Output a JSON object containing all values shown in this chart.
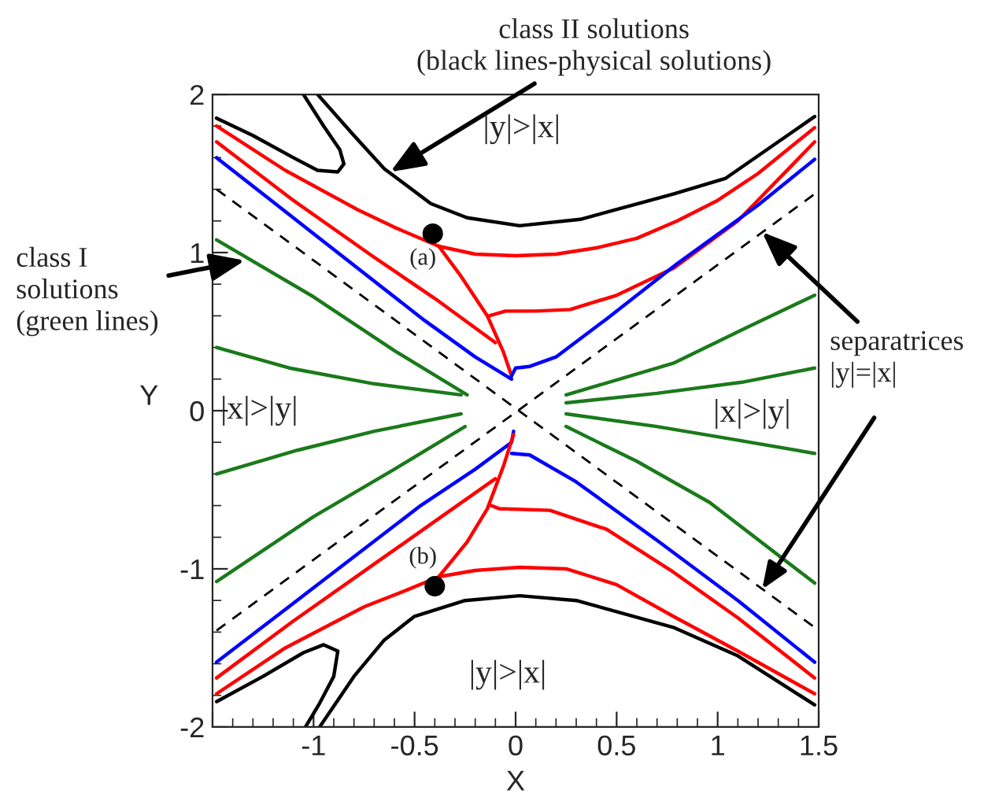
{
  "chart_data": {
    "type": "line",
    "xlabel": "X",
    "ylabel": "Y",
    "xlim": [
      -1.5,
      1.5
    ],
    "ylim": [
      -2,
      2
    ],
    "xticks": [
      {
        "value": -1.5,
        "label": null
      },
      -1,
      -0.5,
      0,
      0.5,
      1,
      1.5
    ],
    "yticks": [
      -2,
      -1,
      0,
      1,
      2
    ],
    "grid": false,
    "legend": false,
    "marker": "none",
    "series": [
      {
        "color": "#000000",
        "x": [
          -1.48,
          -1.3,
          -1.1,
          -0.98,
          -0.88,
          -0.85,
          -0.87,
          -0.95,
          -1.05
        ],
        "values": [
          1.85,
          1.74,
          1.6,
          1.52,
          1.51,
          1.56,
          1.65,
          1.8,
          2.0
        ]
      },
      {
        "color": "#000000",
        "x": [
          -0.98,
          -0.8,
          -0.65,
          -0.42,
          -0.24,
          0.02,
          0.32,
          0.78,
          1.04,
          1.48
        ],
        "values": [
          2.0,
          1.74,
          1.53,
          1.31,
          1.22,
          1.17,
          1.21,
          1.37,
          1.47,
          1.86
        ]
      },
      {
        "color": "#ff0000",
        "x": [
          -1.48,
          -1.14,
          -0.78,
          -0.6,
          -0.38,
          -0.2,
          0,
          0.2,
          0.4,
          0.6,
          0.8,
          1.0,
          1.2,
          1.48
        ],
        "values": [
          1.8,
          1.52,
          1.27,
          1.16,
          1.04,
          0.99,
          0.98,
          0.99,
          1.03,
          1.09,
          1.2,
          1.33,
          1.5,
          1.79
        ]
      },
      {
        "color": "#ff0000",
        "x": [
          -0.38,
          -0.27,
          -0.14,
          -0.06,
          -0.02
        ],
        "values": [
          1.04,
          0.85,
          0.6,
          0.37,
          0.22
        ]
      },
      {
        "color": "#ff0000",
        "x": [
          -1.48,
          -1.1,
          -0.7,
          -0.4,
          -0.1
        ],
        "values": [
          1.7,
          1.33,
          0.97,
          0.71,
          0.43
        ]
      },
      {
        "color": "#ff0000",
        "x": [
          -0.13,
          -0.05,
          0.1,
          0.27,
          0.5,
          0.78,
          1.1,
          1.48
        ],
        "values": [
          0.6,
          0.63,
          0.63,
          0.64,
          0.73,
          0.9,
          1.2,
          1.7
        ]
      },
      {
        "color": "#0000ff",
        "x": [
          -1.48,
          -1.0,
          -0.45,
          -0.2,
          -0.02
        ],
        "values": [
          1.6,
          1.12,
          0.57,
          0.34,
          0.2
        ]
      },
      {
        "color": "#0000ff",
        "x": [
          -0.02,
          0.0,
          0.07,
          0.2,
          0.45,
          0.8,
          1.2,
          1.48
        ],
        "values": [
          0.22,
          0.27,
          0.28,
          0.34,
          0.58,
          0.93,
          1.3,
          1.59
        ]
      },
      {
        "color": "#000000",
        "line_style": "dashed",
        "x": [
          -1.48,
          1.48
        ],
        "values": [
          1.4,
          -1.37
        ]
      },
      {
        "color": "#000000",
        "line_style": "dashed",
        "x": [
          -1.48,
          1.48
        ],
        "values": [
          -1.39,
          1.37
        ]
      },
      {
        "color": "#1a7a1a",
        "x": [
          -1.48,
          -1.0,
          -0.6,
          -0.24
        ],
        "values": [
          1.08,
          0.72,
          0.38,
          0.1
        ]
      },
      {
        "color": "#1a7a1a",
        "x": [
          -1.48,
          -1.12,
          -0.7,
          -0.27
        ],
        "values": [
          0.4,
          0.27,
          0.17,
          0.1
        ]
      },
      {
        "color": "#1a7a1a",
        "x": [
          0.25,
          0.78,
          1.15,
          1.48
        ],
        "values": [
          0.1,
          0.3,
          0.53,
          0.73
        ]
      },
      {
        "color": "#1a7a1a",
        "x": [
          0.25,
          0.7,
          1.12,
          1.48
        ],
        "values": [
          0.05,
          0.11,
          0.18,
          0.27
        ]
      },
      {
        "color": "#1a7a1a",
        "x": [
          -1.48,
          -1.08,
          -0.7,
          -0.27
        ],
        "values": [
          -0.4,
          -0.25,
          -0.13,
          -0.02
        ]
      },
      {
        "color": "#1a7a1a",
        "x": [
          -1.48,
          -1.0,
          -0.6,
          -0.25
        ],
        "values": [
          -1.08,
          -0.67,
          -0.37,
          -0.1
        ]
      },
      {
        "color": "#1a7a1a",
        "x": [
          0.25,
          0.7,
          1.07,
          1.48
        ],
        "values": [
          -0.02,
          -0.1,
          -0.18,
          -0.27
        ]
      },
      {
        "color": "#1a7a1a",
        "x": [
          0.25,
          0.6,
          0.96,
          1.48
        ],
        "values": [
          -0.1,
          -0.32,
          -0.58,
          -1.09
        ]
      },
      {
        "color": "#0000ff",
        "x": [
          -1.48,
          -1.0,
          -0.47,
          -0.2,
          -0.02,
          -0.01
        ],
        "values": [
          -1.59,
          -1.12,
          -0.6,
          -0.37,
          -0.2,
          -0.13
        ]
      },
      {
        "color": "#0000ff",
        "x": [
          -0.02,
          0.07,
          0.3,
          0.7,
          1.1,
          1.48
        ],
        "values": [
          -0.27,
          -0.28,
          -0.45,
          -0.82,
          -1.2,
          -1.59
        ]
      },
      {
        "color": "#ff0000",
        "x": [
          -1.48,
          -1.1,
          -0.7,
          -0.4,
          -0.1
        ],
        "values": [
          -1.69,
          -1.33,
          -0.97,
          -0.7,
          -0.43
        ]
      },
      {
        "color": "#ff0000",
        "x": [
          -0.12,
          -0.08,
          0.17,
          0.45,
          0.78,
          1.1,
          1.48
        ],
        "values": [
          -0.6,
          -0.62,
          -0.63,
          -0.75,
          -1.02,
          -1.31,
          -1.69
        ]
      },
      {
        "color": "#ff0000",
        "x": [
          -0.01,
          -0.06,
          -0.14,
          -0.24,
          -0.38
        ],
        "values": [
          -0.15,
          -0.35,
          -0.62,
          -0.83,
          -1.05
        ]
      },
      {
        "color": "#ff0000",
        "x": [
          -1.48,
          -1.14,
          -0.75,
          -0.55,
          -0.38,
          -0.2,
          0.02,
          0.25,
          0.5,
          0.78,
          1.1,
          1.48
        ],
        "values": [
          -1.79,
          -1.5,
          -1.24,
          -1.14,
          -1.05,
          -1.01,
          -0.99,
          -1.0,
          -1.1,
          -1.3,
          -1.52,
          -1.79
        ]
      },
      {
        "color": "#000000",
        "x": [
          -1.48,
          -1.25,
          -1.05,
          -0.95,
          -0.88,
          -0.9,
          -0.97,
          -1.04
        ],
        "values": [
          -1.84,
          -1.68,
          -1.53,
          -1.48,
          -1.52,
          -1.68,
          -1.85,
          -2.0
        ]
      },
      {
        "color": "#000000",
        "x": [
          -0.97,
          -0.8,
          -0.65,
          -0.5,
          -0.25,
          0.02,
          0.3,
          0.78,
          1.1,
          1.48
        ],
        "values": [
          -2.0,
          -1.68,
          -1.45,
          -1.3,
          -1.2,
          -1.17,
          -1.2,
          -1.37,
          -1.55,
          -1.86
        ]
      },
      {
        "type": "scatter",
        "marker": "circle",
        "color": "#000000",
        "x": [
          -0.41,
          -0.4
        ],
        "values": [
          1.12,
          -1.11
        ]
      }
    ],
    "annotations": [
      {
        "text": "class II solutions\n(black lines-physical solutions)",
        "x": -0.62,
        "y": 1.51
      },
      {
        "text": "class I\nsolutions\n(green lines)",
        "x": -1.34,
        "y": 0.95
      },
      {
        "text": "separatrices\n|y|=|x|",
        "x": 1.22,
        "y": 1.13
      },
      "|y|>|x|",
      "|y|>|x|",
      "|x|>|y|",
      "|x|>|y|",
      "(a)",
      "(b)"
    ]
  }
}
